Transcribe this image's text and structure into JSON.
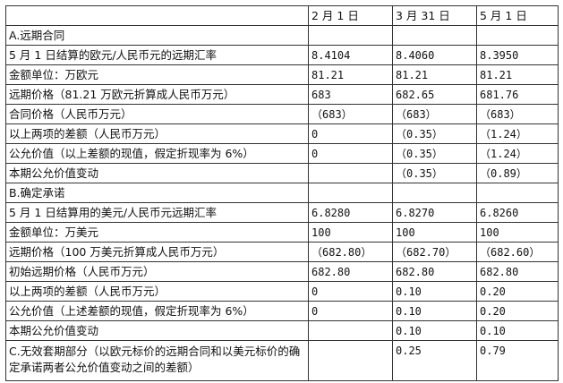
{
  "header": [
    "",
    "2 月 1 日",
    "3 月 31 日",
    "5 月 1 日"
  ],
  "rows": [
    {
      "label": "A.远期合同",
      "values": [
        "",
        "",
        ""
      ]
    },
    {
      "label": "5 月 1 日结算的欧元/人民币元的远期汇率",
      "values": [
        "8.4104",
        "8.4060",
        "8.3950"
      ]
    },
    {
      "label": "金额单位：万欧元",
      "values": [
        "81.21",
        "81.21",
        "81.21"
      ]
    },
    {
      "label": "远期价格（81.21 万欧元折算成人民币万元）",
      "values": [
        "683",
        "682.65",
        "681.76"
      ]
    },
    {
      "label": "合同价格（人民币万元）",
      "values": [
        "（683）",
        "（683）",
        "（683）"
      ]
    },
    {
      "label": "以上两项的差额（人民币万元）",
      "values": [
        "0",
        "（0.35）",
        "（1.24）"
      ]
    },
    {
      "label": "公允价值（以上差额的现值，假定折现率为 6%）",
      "values": [
        "0",
        "（0.35）",
        "（1.24）"
      ]
    },
    {
      "label": "本期公允价值变动",
      "values": [
        "",
        "（0.35）",
        "（0.89）"
      ]
    },
    {
      "label": "B.确定承诺",
      "values": [
        "",
        "",
        ""
      ]
    },
    {
      "label": "5 月 1 日结算用的美元/人民币元远期汇率",
      "values": [
        "6.8280",
        "6.8270",
        "6.8260"
      ]
    },
    {
      "label": "金额单位：万美元",
      "values": [
        "100",
        "100",
        "100"
      ]
    },
    {
      "label": "远期价格（100 万美元折算成人民币万元）",
      "values": [
        "（682.80）",
        "（682.70）",
        "（682.60）"
      ]
    },
    {
      "label": "初始远期价格（人民币万元）",
      "values": [
        "682.80",
        "682.80",
        "682.80"
      ]
    },
    {
      "label": "以上两项的差额（人民币万元）",
      "values": [
        "0",
        "0.10",
        "0.20"
      ]
    },
    {
      "label": "公允价值（上述差额的现值，假定折现率为 6%）",
      "values": [
        "0",
        "0.10",
        "0.20"
      ]
    },
    {
      "label": "本期公允价值变动",
      "values": [
        "",
        "0.10",
        "0.10"
      ]
    },
    {
      "label": "C.无效套期部分（以欧元标价的远期合同和以美元标价的确定承诺两者公允价值变动之间的差额）",
      "values": [
        "",
        "0.25",
        "0.79"
      ]
    }
  ]
}
